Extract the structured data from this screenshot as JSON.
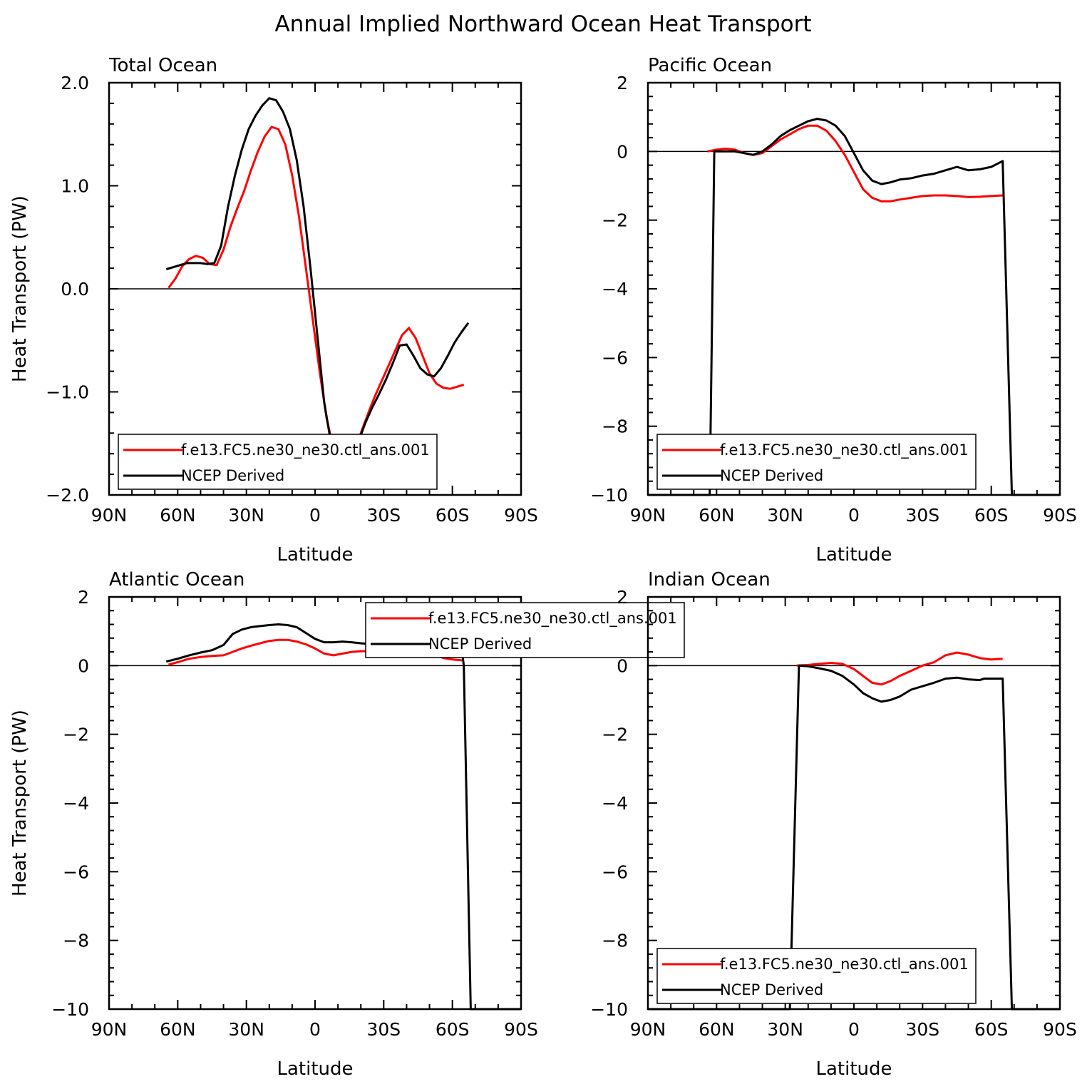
{
  "figure": {
    "title": "Annual Implied Northward Ocean Heat Transport"
  },
  "chart_data": [
    {
      "type": "line",
      "title": "Total Ocean",
      "xlabel": "Latitude",
      "ylabel": "Heat Transport (PW)",
      "xlim": [
        90,
        -90
      ],
      "ylim": [
        -2,
        2
      ],
      "x_ticks": [
        90,
        60,
        30,
        0,
        -30,
        -60,
        -90
      ],
      "x_tick_labels": [
        "90N",
        "60N",
        "30N",
        "0",
        "30S",
        "60S",
        "90S"
      ],
      "y_ticks": [
        -2,
        -1,
        0,
        1,
        2
      ],
      "y_tick_labels": [
        "−2.0",
        "−1.0",
        "0.0",
        "1.0",
        "2.0"
      ],
      "zero_line": true,
      "legend_position": "bottom-left",
      "series": [
        {
          "name": "f.e13.FC5.ne30_ne30.ctl_ans.001",
          "color": "#ff0000",
          "x": [
            64,
            61,
            58,
            55,
            52,
            49,
            46,
            43,
            40,
            37,
            34,
            31,
            28,
            25,
            22,
            19,
            16,
            13,
            10,
            7,
            4,
            1,
            -2,
            -5,
            -8,
            -11,
            -14,
            -17,
            -20,
            -23,
            -26,
            -29,
            -32,
            -35,
            -38,
            -41,
            -44,
            -47,
            -50,
            -53,
            -56,
            -59,
            -62,
            -65
          ],
          "y": [
            0.01,
            0.1,
            0.22,
            0.29,
            0.32,
            0.3,
            0.24,
            0.23,
            0.38,
            0.6,
            0.78,
            0.95,
            1.15,
            1.33,
            1.48,
            1.57,
            1.55,
            1.4,
            1.1,
            0.7,
            0.2,
            -0.3,
            -0.8,
            -1.25,
            -1.55,
            -1.66,
            -1.65,
            -1.55,
            -1.4,
            -1.22,
            -1.05,
            -0.9,
            -0.75,
            -0.6,
            -0.45,
            -0.38,
            -0.48,
            -0.65,
            -0.82,
            -0.92,
            -0.96,
            -0.97,
            -0.95,
            -0.93
          ]
        },
        {
          "name": "NCEP Derived",
          "color": "#000000",
          "x": [
            65,
            62,
            59,
            56,
            53,
            50,
            47,
            44,
            41,
            38,
            35,
            32,
            29,
            26,
            23,
            20,
            17,
            14,
            11,
            8,
            5,
            2,
            -1,
            -4,
            -7,
            -10,
            -13,
            -16,
            -19,
            -22,
            -25,
            -28,
            -31,
            -34,
            -37,
            -40,
            -43,
            -46,
            -49,
            -52,
            -55,
            -58,
            -61,
            -64,
            -67
          ],
          "y": [
            0.19,
            0.21,
            0.23,
            0.25,
            0.25,
            0.25,
            0.24,
            0.25,
            0.42,
            0.8,
            1.1,
            1.35,
            1.55,
            1.68,
            1.78,
            1.85,
            1.83,
            1.72,
            1.55,
            1.25,
            0.8,
            0.2,
            -0.45,
            -1.1,
            -1.5,
            -1.65,
            -1.68,
            -1.62,
            -1.48,
            -1.3,
            -1.15,
            -1.02,
            -0.88,
            -0.72,
            -0.55,
            -0.54,
            -0.65,
            -0.77,
            -0.83,
            -0.85,
            -0.77,
            -0.65,
            -0.52,
            -0.42,
            -0.33
          ]
        }
      ]
    },
    {
      "type": "line",
      "title": "Pacific Ocean",
      "xlabel": "Latitude",
      "ylabel": "",
      "xlim": [
        90,
        -90
      ],
      "ylim": [
        -10,
        2
      ],
      "x_ticks": [
        90,
        60,
        30,
        0,
        -30,
        -60,
        -90
      ],
      "x_tick_labels": [
        "90N",
        "60N",
        "30N",
        "0",
        "30S",
        "60S",
        "90S"
      ],
      "y_ticks": [
        -10,
        -8,
        -6,
        -4,
        -2,
        0,
        2
      ],
      "y_tick_labels": [
        "−10",
        "−8",
        "−6",
        "−4",
        "−2",
        "0",
        "2"
      ],
      "zero_line": true,
      "legend_position": "bottom-left",
      "series": [
        {
          "name": "f.e13.FC5.ne30_ne30.ctl_ans.001",
          "color": "#ff0000",
          "x": [
            64,
            60,
            56,
            52,
            48,
            44,
            40,
            36,
            32,
            28,
            24,
            20,
            16,
            12,
            8,
            4,
            0,
            -4,
            -8,
            -12,
            -16,
            -20,
            -25,
            -30,
            -35,
            -40,
            -45,
            -50,
            -55,
            -60,
            -65
          ],
          "y": [
            0.0,
            0.05,
            0.08,
            0.05,
            -0.05,
            -0.1,
            -0.05,
            0.15,
            0.35,
            0.5,
            0.65,
            0.75,
            0.75,
            0.6,
            0.3,
            -0.1,
            -0.6,
            -1.1,
            -1.35,
            -1.45,
            -1.45,
            -1.4,
            -1.35,
            -1.3,
            -1.28,
            -1.28,
            -1.3,
            -1.33,
            -1.32,
            -1.3,
            -1.28
          ]
        },
        {
          "name": "NCEP Derived",
          "color": "#000000",
          "x": [
            90,
            63,
            61,
            60,
            56,
            52,
            48,
            44,
            40,
            36,
            32,
            28,
            24,
            20,
            16,
            12,
            8,
            4,
            0,
            -4,
            -8,
            -12,
            -16,
            -20,
            -25,
            -30,
            -35,
            -40,
            -45,
            -50,
            -55,
            -60,
            -65,
            -69,
            -90
          ],
          "y": [
            -10,
            -10,
            0.0,
            0.0,
            0.0,
            0.0,
            -0.05,
            -0.1,
            0.0,
            0.2,
            0.45,
            0.62,
            0.75,
            0.88,
            0.95,
            0.9,
            0.75,
            0.45,
            -0.05,
            -0.55,
            -0.85,
            -0.95,
            -0.9,
            -0.82,
            -0.78,
            -0.7,
            -0.65,
            -0.55,
            -0.45,
            -0.55,
            -0.52,
            -0.45,
            -0.28,
            -10,
            -10
          ]
        }
      ]
    },
    {
      "type": "line",
      "title": "Atlantic Ocean",
      "xlabel": "Latitude",
      "ylabel": "Heat Transport (PW)",
      "xlim": [
        90,
        -90
      ],
      "ylim": [
        -10,
        2
      ],
      "x_ticks": [
        90,
        60,
        30,
        0,
        -30,
        -60,
        -90
      ],
      "x_tick_labels": [
        "90N",
        "60N",
        "30N",
        "0",
        "30S",
        "60S",
        "90S"
      ],
      "y_ticks": [
        -10,
        -8,
        -6,
        -4,
        -2,
        0,
        2
      ],
      "y_tick_labels": [
        "−10",
        "−8",
        "−6",
        "−4",
        "−2",
        "0",
        "2"
      ],
      "zero_line": true,
      "legend_position": "top-right",
      "series": [
        {
          "name": "f.e13.FC5.ne30_ne30.ctl_ans.001",
          "color": "#ff0000",
          "x": [
            64,
            60,
            55,
            50,
            45,
            40,
            36,
            32,
            28,
            24,
            20,
            16,
            12,
            8,
            4,
            0,
            -4,
            -8,
            -12,
            -16,
            -20,
            -25,
            -30,
            -35,
            -40,
            -44,
            -48,
            -52,
            -56,
            -60,
            -65
          ],
          "y": [
            0.03,
            0.1,
            0.2,
            0.25,
            0.28,
            0.3,
            0.4,
            0.5,
            0.58,
            0.65,
            0.72,
            0.75,
            0.75,
            0.7,
            0.62,
            0.5,
            0.35,
            0.3,
            0.35,
            0.4,
            0.42,
            0.42,
            0.4,
            0.42,
            0.45,
            0.55,
            0.48,
            0.35,
            0.22,
            0.18,
            0.15
          ]
        },
        {
          "name": "NCEP Derived",
          "color": "#000000",
          "x": [
            65,
            60,
            55,
            50,
            45,
            40,
            36,
            32,
            28,
            24,
            20,
            16,
            12,
            8,
            4,
            0,
            -4,
            -8,
            -12,
            -16,
            -20,
            -25,
            -30,
            -35,
            -40,
            -45,
            -50,
            -55,
            -60,
            -64,
            -65,
            -68,
            -90
          ],
          "y": [
            0.12,
            0.2,
            0.3,
            0.38,
            0.45,
            0.6,
            0.92,
            1.05,
            1.12,
            1.15,
            1.18,
            1.2,
            1.18,
            1.12,
            0.95,
            0.78,
            0.68,
            0.68,
            0.7,
            0.68,
            0.65,
            0.62,
            0.6,
            0.65,
            0.68,
            0.68,
            0.6,
            0.55,
            0.52,
            0.52,
            0.0,
            -10,
            -10
          ]
        }
      ]
    },
    {
      "type": "line",
      "title": "Indian Ocean",
      "xlabel": "Latitude",
      "ylabel": "",
      "xlim": [
        90,
        -90
      ],
      "ylim": [
        -10,
        2
      ],
      "x_ticks": [
        90,
        60,
        30,
        0,
        -30,
        -60,
        -90
      ],
      "x_tick_labels": [
        "90N",
        "60N",
        "30N",
        "0",
        "30S",
        "60S",
        "90S"
      ],
      "y_ticks": [
        -10,
        -8,
        -6,
        -4,
        -2,
        0,
        2
      ],
      "y_tick_labels": [
        "−10",
        "−8",
        "−6",
        "−4",
        "−2",
        "0",
        "2"
      ],
      "zero_line": true,
      "legend_position": "bottom-left",
      "series": [
        {
          "name": "f.e13.FC5.ne30_ne30.ctl_ans.001",
          "color": "#ff0000",
          "x": [
            25,
            20,
            15,
            10,
            5,
            0,
            -4,
            -8,
            -12,
            -16,
            -20,
            -25,
            -30,
            -35,
            -40,
            -45,
            -50,
            -55,
            -60,
            -65
          ],
          "y": [
            0.0,
            0.02,
            0.05,
            0.08,
            0.05,
            -0.1,
            -0.3,
            -0.5,
            -0.55,
            -0.45,
            -0.3,
            -0.15,
            0.0,
            0.1,
            0.3,
            0.38,
            0.32,
            0.22,
            0.18,
            0.2
          ]
        },
        {
          "name": "NCEP Derived",
          "color": "#000000",
          "x": [
            90,
            28,
            24,
            20,
            15,
            10,
            5,
            0,
            -4,
            -8,
            -12,
            -16,
            -20,
            -25,
            -30,
            -35,
            -40,
            -45,
            -50,
            -55,
            -57,
            -60,
            -65,
            -69,
            -90
          ],
          "y": [
            -10,
            -10,
            0.0,
            -0.02,
            -0.08,
            -0.15,
            -0.3,
            -0.55,
            -0.8,
            -0.95,
            -1.05,
            -1.0,
            -0.9,
            -0.7,
            -0.6,
            -0.5,
            -0.38,
            -0.35,
            -0.4,
            -0.42,
            -0.38,
            -0.38,
            -0.38,
            -10,
            -10
          ]
        }
      ]
    }
  ]
}
